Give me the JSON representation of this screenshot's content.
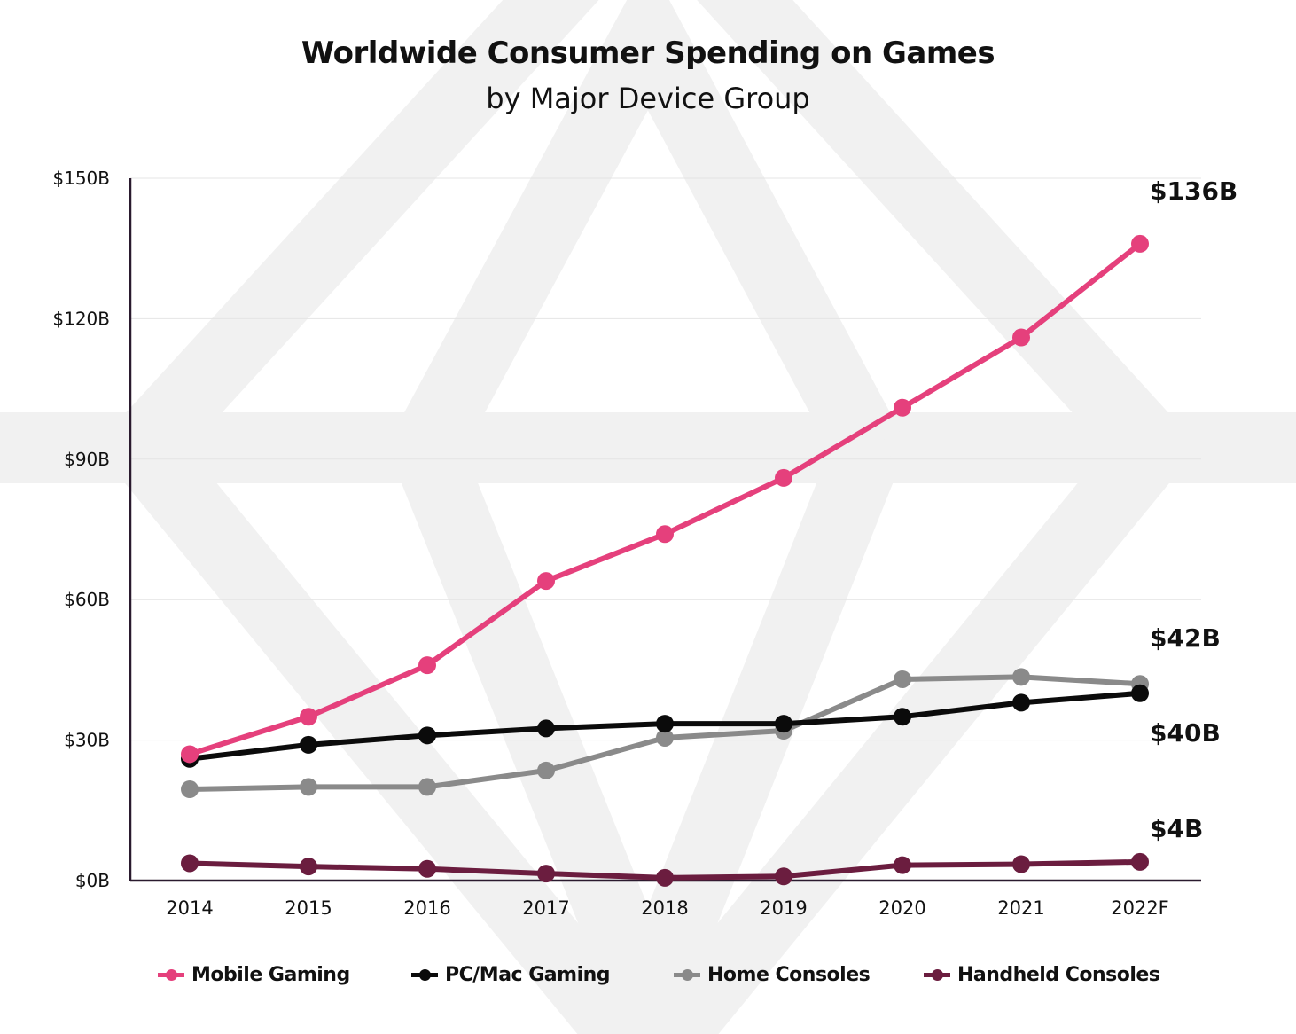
{
  "title": "Worldwide Consumer Spending on Games",
  "subtitle": "by Major Device Group",
  "chart_data": {
    "type": "line",
    "categories": [
      "2014",
      "2015",
      "2016",
      "2017",
      "2018",
      "2019",
      "2020",
      "2021",
      "2022F"
    ],
    "ylim": [
      0,
      150
    ],
    "yticks": [
      0,
      30,
      60,
      90,
      120,
      150
    ],
    "ytick_labels": [
      "$0B",
      "$30B",
      "$60B",
      "$90B",
      "$120B",
      "$150B"
    ],
    "grid": true,
    "legend_position": "bottom",
    "series": [
      {
        "name": "Mobile Gaming",
        "color": "#e5407c",
        "values": [
          27,
          35,
          46,
          64,
          74,
          86,
          101,
          116,
          136
        ],
        "end_label": "$136B"
      },
      {
        "name": "PC/Mac Gaming",
        "color": "#0b0b0b",
        "values": [
          26,
          29,
          31,
          32.5,
          33.5,
          33.5,
          35,
          38,
          40
        ],
        "end_label": "$40B"
      },
      {
        "name": "Home Consoles",
        "color": "#8a8a8a",
        "values": [
          19.5,
          20,
          20,
          23.5,
          30.5,
          32,
          43,
          43.5,
          42
        ],
        "end_label": "$42B"
      },
      {
        "name": "Handheld Consoles",
        "color": "#6b1d3f",
        "values": [
          3.7,
          3,
          2.5,
          1.5,
          0.6,
          0.9,
          3.3,
          3.5,
          4
        ],
        "end_label": "$4B"
      }
    ]
  }
}
